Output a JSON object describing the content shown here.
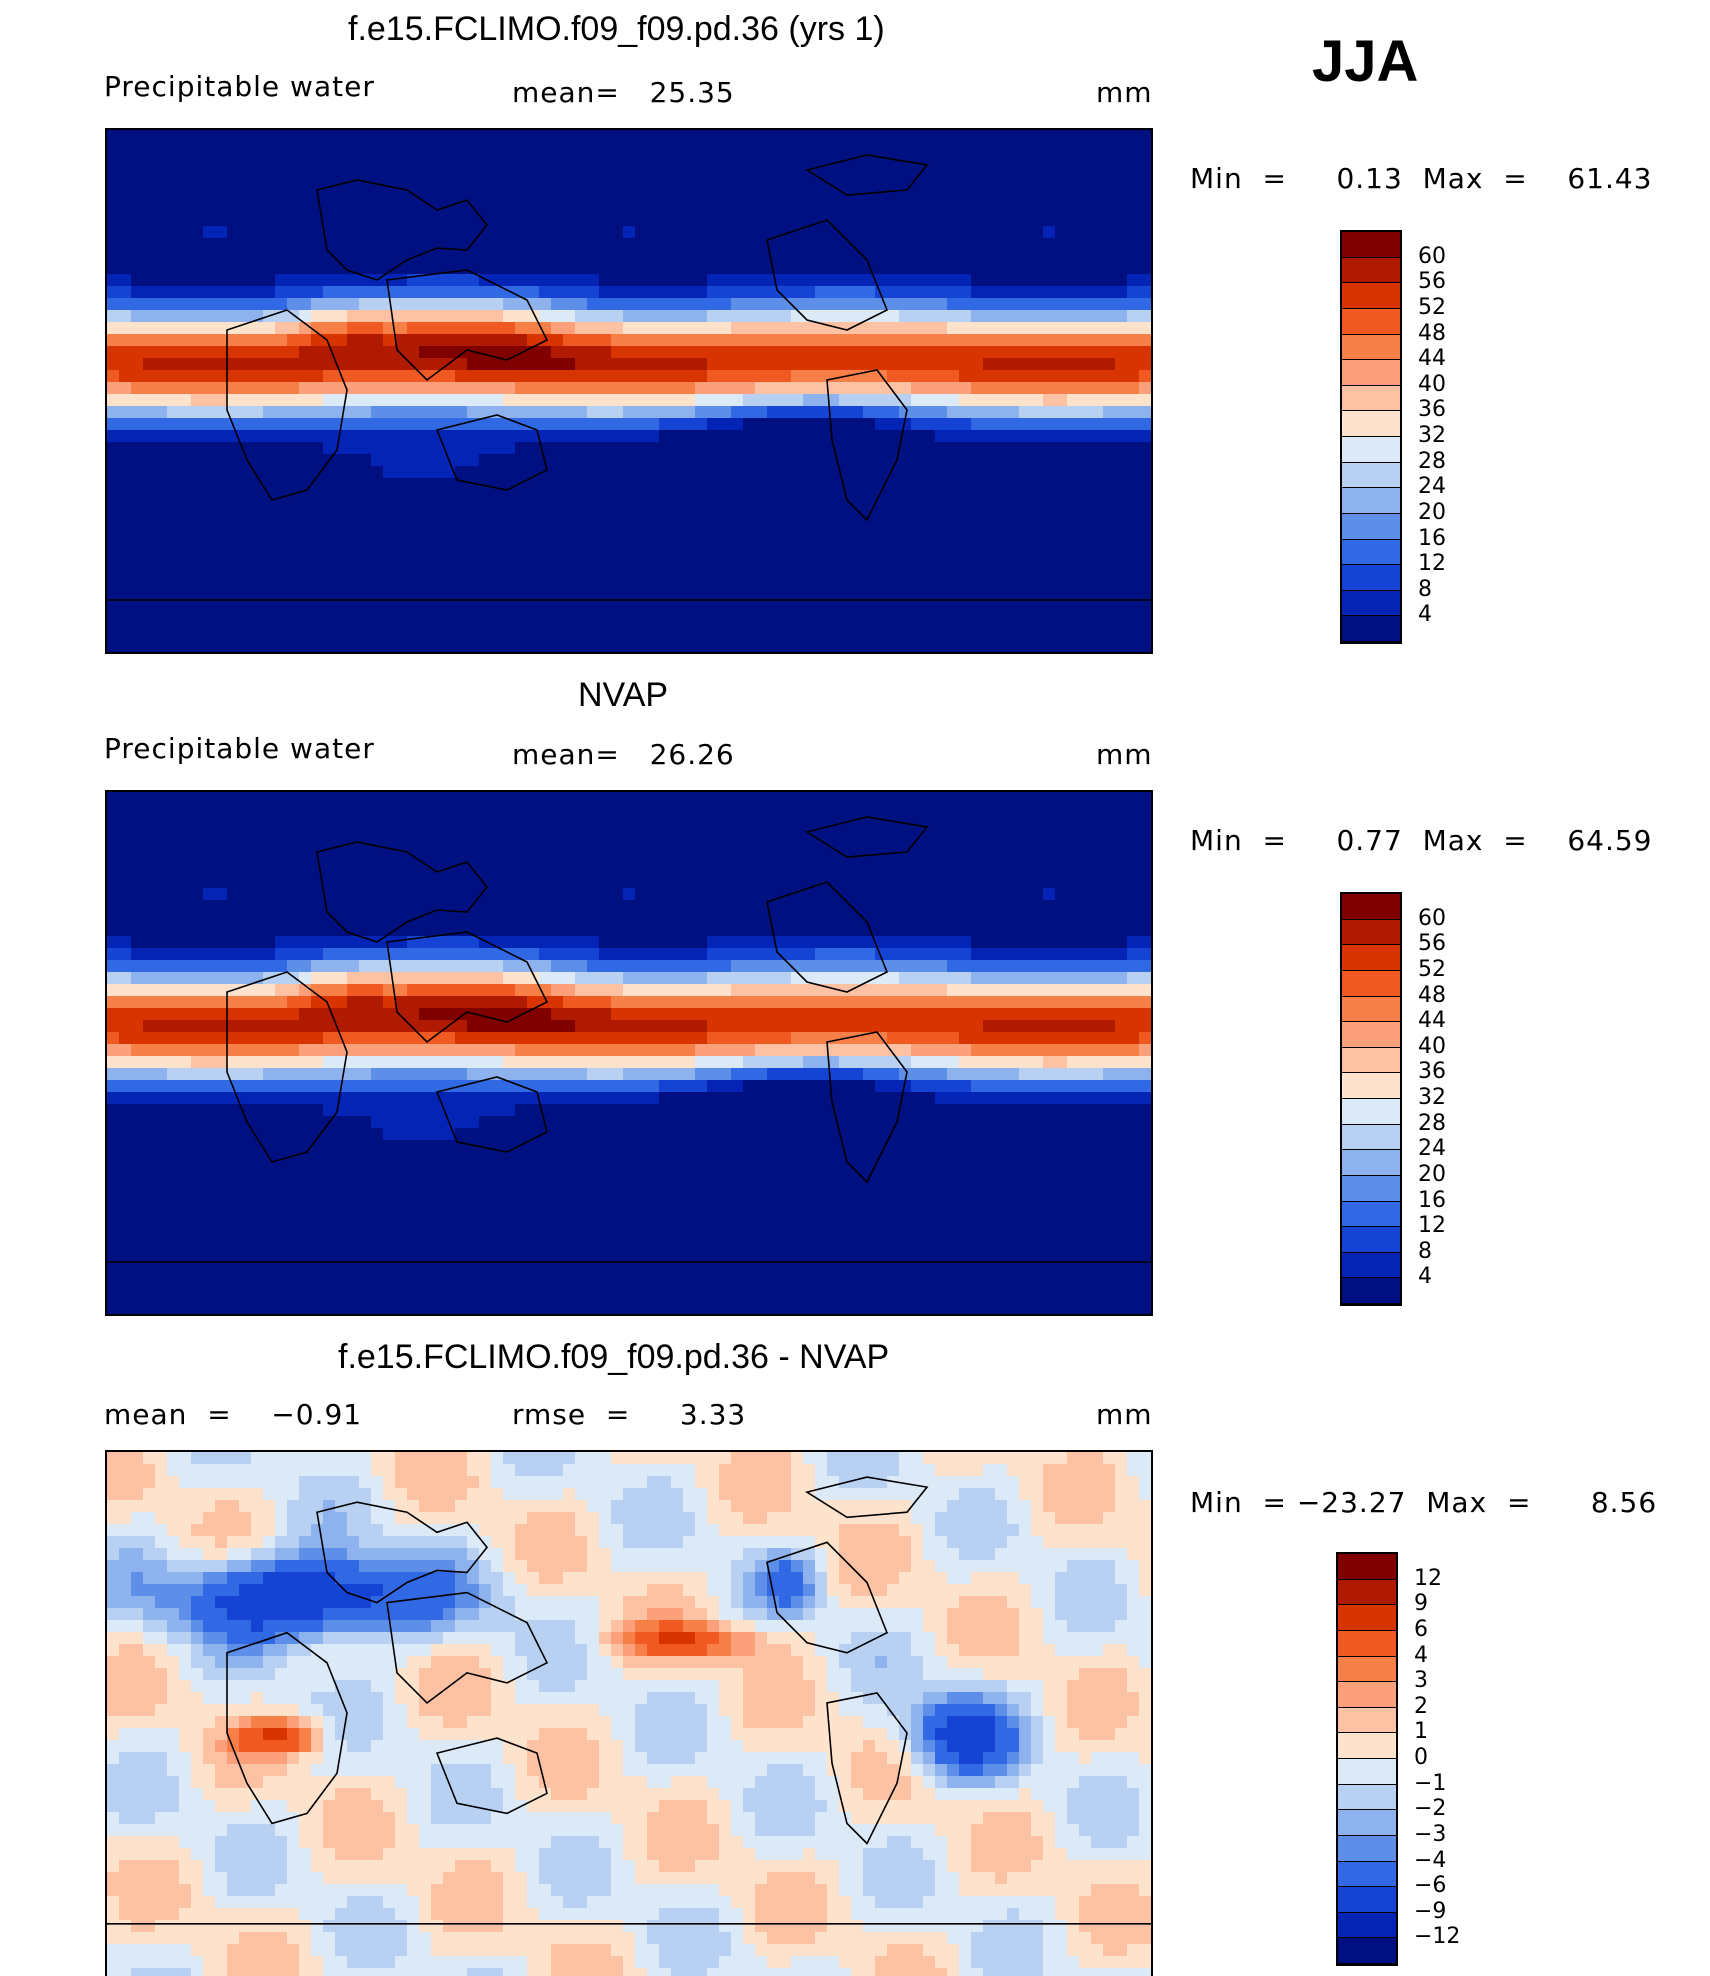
{
  "season": "JJA",
  "panels": [
    {
      "title": "f.e15.FCLIMO.f09_f09.pd.36 (yrs 1)",
      "left_label": "Precipitable water",
      "mean_text": "mean=   25.35",
      "units": "mm",
      "min_max": "Min  =     0.13  Max  =    61.43",
      "field": "precip",
      "colorbar": {
        "labels": [
          "60",
          "56",
          "52",
          "48",
          "44",
          "40",
          "36",
          "32",
          "28",
          "24",
          "20",
          "16",
          "12",
          "8",
          "4"
        ],
        "colors": [
          "#800000",
          "#b01a00",
          "#d83400",
          "#f05a22",
          "#f78049",
          "#fba07a",
          "#fdc2a4",
          "#fde3cb",
          "#dce9f7",
          "#b8d1f2",
          "#8eb2ed",
          "#5d8ee8",
          "#3168e3",
          "#1543d3",
          "#0424b5",
          "#001080"
        ]
      }
    },
    {
      "title": "NVAP",
      "left_label": "Precipitable water",
      "mean_text": "mean=   26.26",
      "units": "mm",
      "min_max": "Min  =     0.77  Max  =    64.59",
      "field": "precip",
      "colorbar": {
        "labels": [
          "60",
          "56",
          "52",
          "48",
          "44",
          "40",
          "36",
          "32",
          "28",
          "24",
          "20",
          "16",
          "12",
          "8",
          "4"
        ],
        "colors": [
          "#800000",
          "#b01a00",
          "#d83400",
          "#f05a22",
          "#f78049",
          "#fba07a",
          "#fdc2a4",
          "#fde3cb",
          "#dce9f7",
          "#b8d1f2",
          "#8eb2ed",
          "#5d8ee8",
          "#3168e3",
          "#1543d3",
          "#0424b5",
          "#001080"
        ]
      }
    },
    {
      "title": "f.e15.FCLIMO.f09_f09.pd.36 - NVAP",
      "left_label": "mean  =    −0.91",
      "mean_text": "rmse  =     3.33",
      "units": "mm",
      "min_max": "Min  = −23.27  Max  =      8.56",
      "field": "diff",
      "colorbar": {
        "labels": [
          "12",
          "9",
          "6",
          "4",
          "3",
          "2",
          "1",
          "0",
          "−1",
          "−2",
          "−3",
          "−4",
          "−6",
          "−9",
          "−12"
        ],
        "colors": [
          "#800000",
          "#b01a00",
          "#d83400",
          "#f05a22",
          "#f78049",
          "#fba07a",
          "#fdc2a4",
          "#fde3cb",
          "#dce9f7",
          "#b8d1f2",
          "#8eb2ed",
          "#5d8ee8",
          "#3168e3",
          "#1543d3",
          "#0424b5",
          "#001080"
        ]
      }
    }
  ]
}
